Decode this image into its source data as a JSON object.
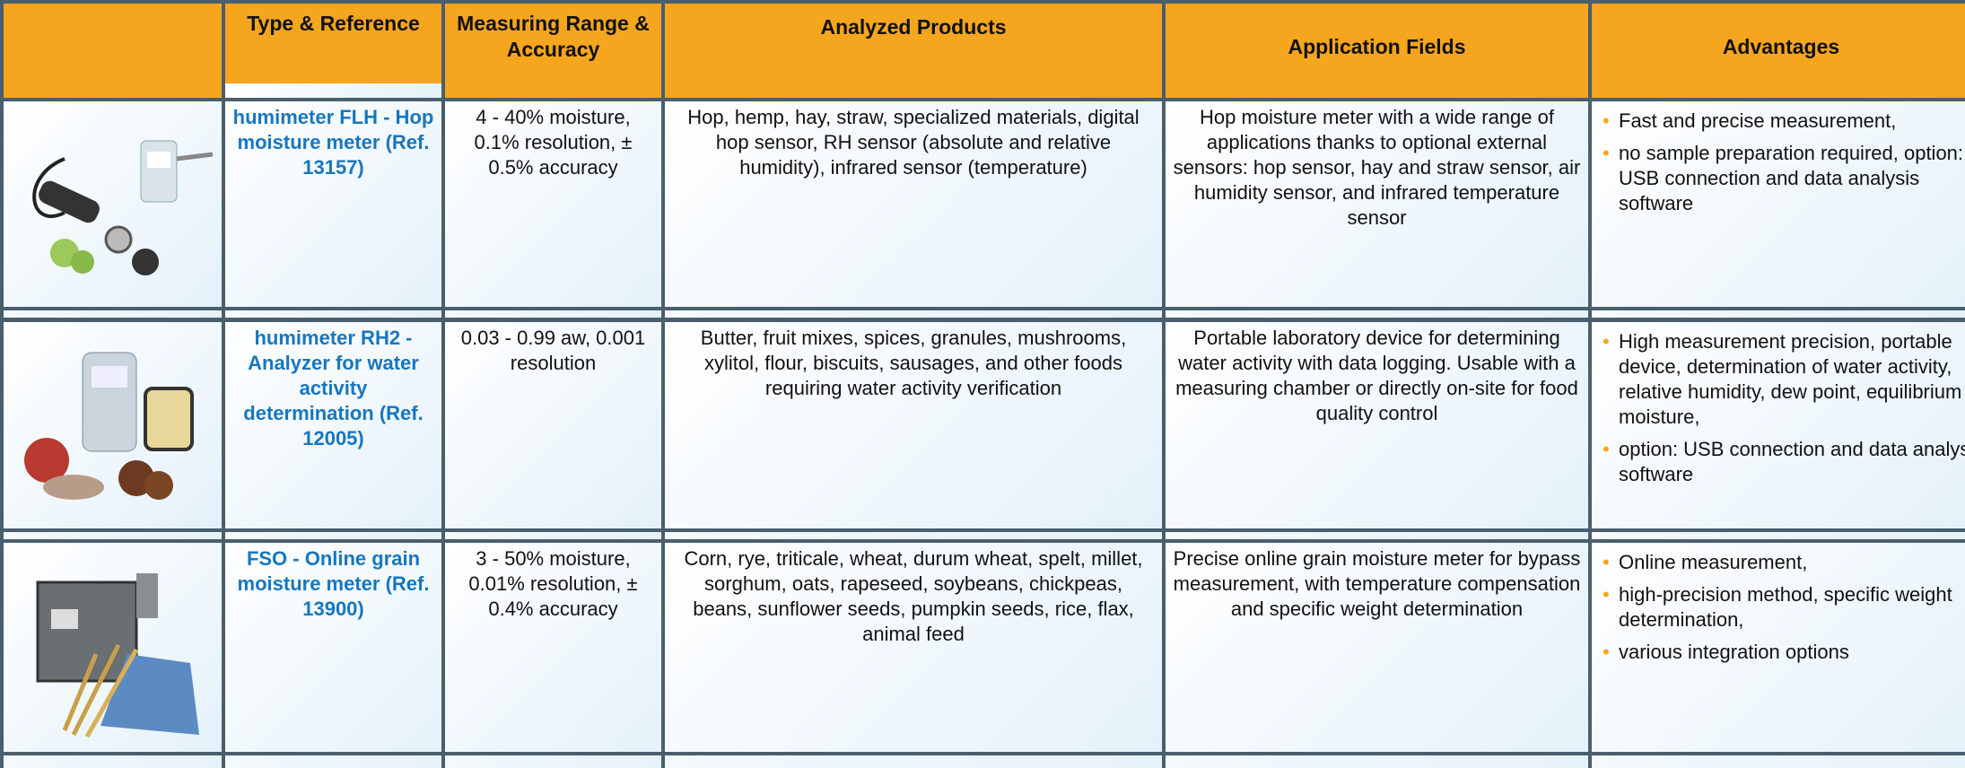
{
  "table": {
    "headers": [
      "Type & Reference",
      "Measuring Range & Accuracy",
      "Analyzed Products",
      "Application Fields",
      "Advantages"
    ],
    "rows": [
      {
        "type": "humimeter FLH - Hop moisture meter (Ref. 13157)",
        "range": "4 - 40% moisture, 0.1% resolution, ± 0.5% accuracy",
        "products": "Hop, hemp, hay, straw, specialized materials, digital hop sensor, RH sensor (absolute and relative humidity), infrared sensor (temperature)",
        "fields": "Hop moisture meter with a wide range of applications thanks to optional external sensors: hop sensor, hay and straw sensor, air humidity sensor, and infrared temperature sensor",
        "advantages": [
          "Fast and precise measurement,",
          "no sample preparation required, option: USB connection and data analysis software"
        ]
      },
      {
        "type": "humimeter RH2 - Analyzer for water activity determination (Ref. 12005)",
        "range": "0.03 - 0.99 aw, 0.001 resolution",
        "products": "Butter, fruit mixes, spices, granules, mushrooms, xylitol, flour, biscuits, sausages, and other foods requiring water activity verification",
        "fields": "Portable laboratory device for determining water activity with data logging. Usable with a measuring chamber or directly on-site for food quality control",
        "advantages": [
          "High measurement precision, portable device, determination of water activity, relative humidity, dew point, equilibrium moisture,",
          "option: USB connection and data analysis software"
        ]
      },
      {
        "type": "FSO - Online grain moisture meter (Ref. 13900)",
        "range": "3 - 50% moisture, 0.01% resolution, ± 0.4% accuracy",
        "products": "Corn, rye, triticale, wheat, durum wheat, spelt, millet, sorghum, oats, rapeseed, soybeans, chickpeas, beans, sunflower seeds, pumpkin seeds, rice, flax, animal feed",
        "fields": "Precise online grain moisture meter for bypass measurement, with temperature compensation and specific weight determination",
        "advantages": [
          "Online measurement,",
          "high-precision method, specific weight determination,",
          "various integration options"
        ]
      }
    ]
  }
}
